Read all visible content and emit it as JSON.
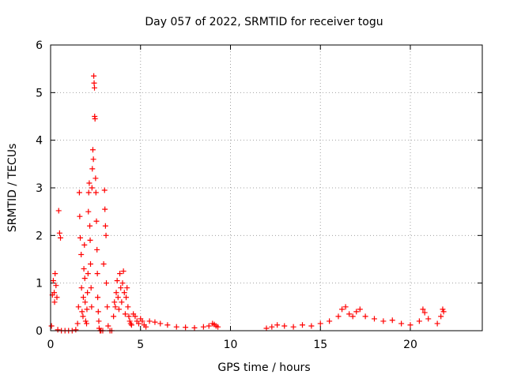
{
  "chart_data": {
    "type": "scatter",
    "title": "Day 057 of 2022, SRMTID for receiver togu",
    "xlabel": "GPS time / hours",
    "ylabel": "SRMTID / TECUs",
    "xlim": [
      0,
      24
    ],
    "ylim": [
      0,
      6
    ],
    "x_ticks": [
      0,
      5,
      10,
      15,
      20
    ],
    "x_tick_labels": [
      "0",
      "5",
      "10",
      "15",
      "20"
    ],
    "y_ticks": [
      0,
      1,
      2,
      3,
      4,
      5,
      6
    ],
    "y_tick_labels": [
      "0",
      "1",
      "2",
      "3",
      "4",
      "5",
      "6"
    ],
    "grid": true,
    "marker": "+",
    "color": "#ff0000",
    "series": [
      {
        "name": "SRMTID",
        "points": [
          [
            0.05,
            0.1
          ],
          [
            0.1,
            0.75
          ],
          [
            0.15,
            1.05
          ],
          [
            0.2,
            0.8
          ],
          [
            0.22,
            0.6
          ],
          [
            0.25,
            1.2
          ],
          [
            0.3,
            0.95
          ],
          [
            0.35,
            0.7
          ],
          [
            0.4,
            0.02
          ],
          [
            0.45,
            2.52
          ],
          [
            0.5,
            2.05
          ],
          [
            0.55,
            1.95
          ],
          [
            0.6,
            0.0
          ],
          [
            0.8,
            0.0
          ],
          [
            1.0,
            0.0
          ],
          [
            1.2,
            0.0
          ],
          [
            1.4,
            0.02
          ],
          [
            1.5,
            0.15
          ],
          [
            1.55,
            0.5
          ],
          [
            1.6,
            2.9
          ],
          [
            1.62,
            2.4
          ],
          [
            1.65,
            1.95
          ],
          [
            1.7,
            1.6
          ],
          [
            1.72,
            0.9
          ],
          [
            1.75,
            0.4
          ],
          [
            1.8,
            0.3
          ],
          [
            1.82,
            0.7
          ],
          [
            1.85,
            1.3
          ],
          [
            1.88,
            1.8
          ],
          [
            1.9,
            1.1
          ],
          [
            1.92,
            0.6
          ],
          [
            1.95,
            0.2
          ],
          [
            2.0,
            0.15
          ],
          [
            2.02,
            0.45
          ],
          [
            2.05,
            0.8
          ],
          [
            2.08,
            1.2
          ],
          [
            2.1,
            2.5
          ],
          [
            2.12,
            2.9
          ],
          [
            2.15,
            3.1
          ],
          [
            2.18,
            2.2
          ],
          [
            2.2,
            1.9
          ],
          [
            2.22,
            1.4
          ],
          [
            2.25,
            0.9
          ],
          [
            2.28,
            0.5
          ],
          [
            2.3,
            3.0
          ],
          [
            2.32,
            3.4
          ],
          [
            2.35,
            3.8
          ],
          [
            2.38,
            3.6
          ],
          [
            2.4,
            5.35
          ],
          [
            2.42,
            5.2
          ],
          [
            2.44,
            5.1
          ],
          [
            2.45,
            4.5
          ],
          [
            2.47,
            4.45
          ],
          [
            2.5,
            3.2
          ],
          [
            2.52,
            2.9
          ],
          [
            2.55,
            2.3
          ],
          [
            2.58,
            1.7
          ],
          [
            2.6,
            1.2
          ],
          [
            2.62,
            0.7
          ],
          [
            2.65,
            0.4
          ],
          [
            2.68,
            0.2
          ],
          [
            2.7,
            0.05
          ],
          [
            2.75,
            0.0
          ],
          [
            2.8,
            0.0
          ],
          [
            2.9,
            0.0
          ],
          [
            2.95,
            1.4
          ],
          [
            3.0,
            2.95
          ],
          [
            3.02,
            2.55
          ],
          [
            3.05,
            2.2
          ],
          [
            3.08,
            2.0
          ],
          [
            3.1,
            1.0
          ],
          [
            3.15,
            0.5
          ],
          [
            3.2,
            0.1
          ],
          [
            3.3,
            0.0
          ],
          [
            3.4,
            0.0
          ],
          [
            3.5,
            0.3
          ],
          [
            3.55,
            0.6
          ],
          [
            3.6,
            0.5
          ],
          [
            3.65,
            0.8
          ],
          [
            3.7,
            1.05
          ],
          [
            3.75,
            0.7
          ],
          [
            3.8,
            0.45
          ],
          [
            3.85,
            1.2
          ],
          [
            3.9,
            0.9
          ],
          [
            3.95,
            0.6
          ],
          [
            4.0,
            1.0
          ],
          [
            4.05,
            1.25
          ],
          [
            4.1,
            0.8
          ],
          [
            4.15,
            0.35
          ],
          [
            4.2,
            0.7
          ],
          [
            4.25,
            0.9
          ],
          [
            4.3,
            0.5
          ],
          [
            4.35,
            0.3
          ],
          [
            4.4,
            0.2
          ],
          [
            4.45,
            0.15
          ],
          [
            4.5,
            0.12
          ],
          [
            4.6,
            0.35
          ],
          [
            4.7,
            0.3
          ],
          [
            4.8,
            0.2
          ],
          [
            4.9,
            0.15
          ],
          [
            5.0,
            0.25
          ],
          [
            5.1,
            0.2
          ],
          [
            5.2,
            0.12
          ],
          [
            5.3,
            0.08
          ],
          [
            5.5,
            0.2
          ],
          [
            5.8,
            0.18
          ],
          [
            6.1,
            0.15
          ],
          [
            6.5,
            0.12
          ],
          [
            7.0,
            0.08
          ],
          [
            7.5,
            0.07
          ],
          [
            8.0,
            0.06
          ],
          [
            8.5,
            0.08
          ],
          [
            8.8,
            0.1
          ],
          [
            9.0,
            0.15
          ],
          [
            9.1,
            0.13
          ],
          [
            9.2,
            0.1
          ],
          [
            9.3,
            0.08
          ],
          [
            12.0,
            0.05
          ],
          [
            12.3,
            0.08
          ],
          [
            12.6,
            0.12
          ],
          [
            13.0,
            0.1
          ],
          [
            13.5,
            0.08
          ],
          [
            14.0,
            0.12
          ],
          [
            14.5,
            0.1
          ],
          [
            15.0,
            0.15
          ],
          [
            15.5,
            0.2
          ],
          [
            16.0,
            0.3
          ],
          [
            16.2,
            0.45
          ],
          [
            16.4,
            0.5
          ],
          [
            16.6,
            0.35
          ],
          [
            16.8,
            0.3
          ],
          [
            17.0,
            0.4
          ],
          [
            17.2,
            0.45
          ],
          [
            17.5,
            0.3
          ],
          [
            18.0,
            0.25
          ],
          [
            18.5,
            0.2
          ],
          [
            19.0,
            0.22
          ],
          [
            19.5,
            0.15
          ],
          [
            20.0,
            0.12
          ],
          [
            20.5,
            0.2
          ],
          [
            20.7,
            0.45
          ],
          [
            20.8,
            0.38
          ],
          [
            21.0,
            0.25
          ],
          [
            21.5,
            0.15
          ],
          [
            21.7,
            0.3
          ],
          [
            21.8,
            0.45
          ],
          [
            21.85,
            0.4
          ]
        ]
      }
    ]
  }
}
